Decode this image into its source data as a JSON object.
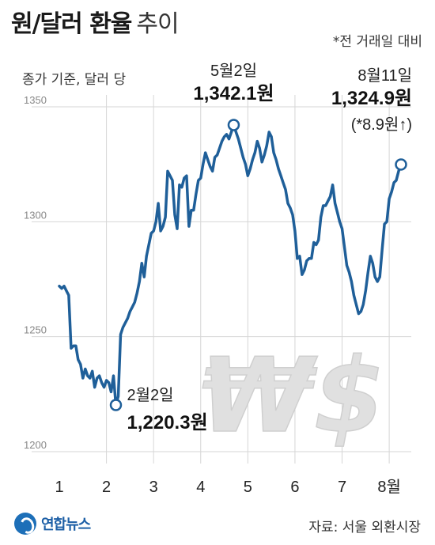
{
  "header": {
    "title_main": "원/달러 환율",
    "title_sub": "추이",
    "note": "*전 거래일 대비",
    "subtitle": "종가 기준, 달러 당"
  },
  "footer": {
    "logo": "연합뉴스",
    "source": "자료: 서울 외환시장"
  },
  "colors": {
    "line": "#1f5f99",
    "grid": "#d6d6d6",
    "axis_text": "#888888",
    "watermark": "#e0e0e0"
  },
  "chart_data": {
    "type": "line",
    "title": "원/달러 환율 추이",
    "subtitle": "종가 기준, 달러 당",
    "ylim": [
      1200,
      1350
    ],
    "yticks": [
      1200,
      1250,
      1300,
      1350
    ],
    "xticks": [
      "1",
      "2",
      "3",
      "4",
      "5",
      "6",
      "7",
      "8월"
    ],
    "grid": true,
    "watermark": "₩$",
    "series": [
      {
        "values": [
          1272,
          1271,
          1272,
          1270,
          1268,
          1245,
          1246,
          1246,
          1240,
          1238,
          1232,
          1236,
          1233,
          1232,
          1235,
          1228,
          1232,
          1233,
          1230,
          1228,
          1231,
          1230,
          1226,
          1233,
          1220.3,
          1224,
          1251,
          1254,
          1256,
          1258,
          1261,
          1263,
          1265,
          1269,
          1274,
          1282,
          1276,
          1285,
          1290,
          1295,
          1296,
          1300,
          1308,
          1296,
          1298,
          1302,
          1322,
          1320,
          1318,
          1303,
          1297,
          1316,
          1315,
          1319,
          1320,
          1298,
          1305,
          1305,
          1312,
          1318,
          1319,
          1325,
          1330,
          1327,
          1324,
          1322,
          1328,
          1329,
          1332,
          1335,
          1337,
          1338,
          1336,
          1339,
          1342.1,
          1339,
          1336,
          1332,
          1328,
          1325,
          1320,
          1323,
          1327,
          1330,
          1335,
          1332,
          1326,
          1329,
          1333,
          1339,
          1337,
          1330,
          1327,
          1323,
          1320,
          1317,
          1314,
          1308,
          1306,
          1303,
          1296,
          1284,
          1285,
          1277,
          1279,
          1283,
          1284,
          1284,
          1291,
          1290,
          1292,
          1302,
          1307,
          1307,
          1309,
          1311,
          1316,
          1308,
          1304,
          1300,
          1297,
          1289,
          1281,
          1278,
          1274,
          1268,
          1264,
          1260,
          1261,
          1264,
          1270,
          1278,
          1285,
          1282,
          1276,
          1274,
          1276,
          1288,
          1299,
          1300,
          1310,
          1313,
          1317,
          1318,
          1322,
          1324.9
        ]
      }
    ],
    "annotations": [
      {
        "date": "2월2일",
        "value_label": "1,220.3원",
        "value": 1220.3
      },
      {
        "date": "5월2일",
        "value_label": "1,342.1원",
        "value": 1342.1
      },
      {
        "date": "8월11일",
        "value_label": "1,324.9원",
        "change": "(*8.9원↑)",
        "value": 1324.9
      }
    ]
  }
}
